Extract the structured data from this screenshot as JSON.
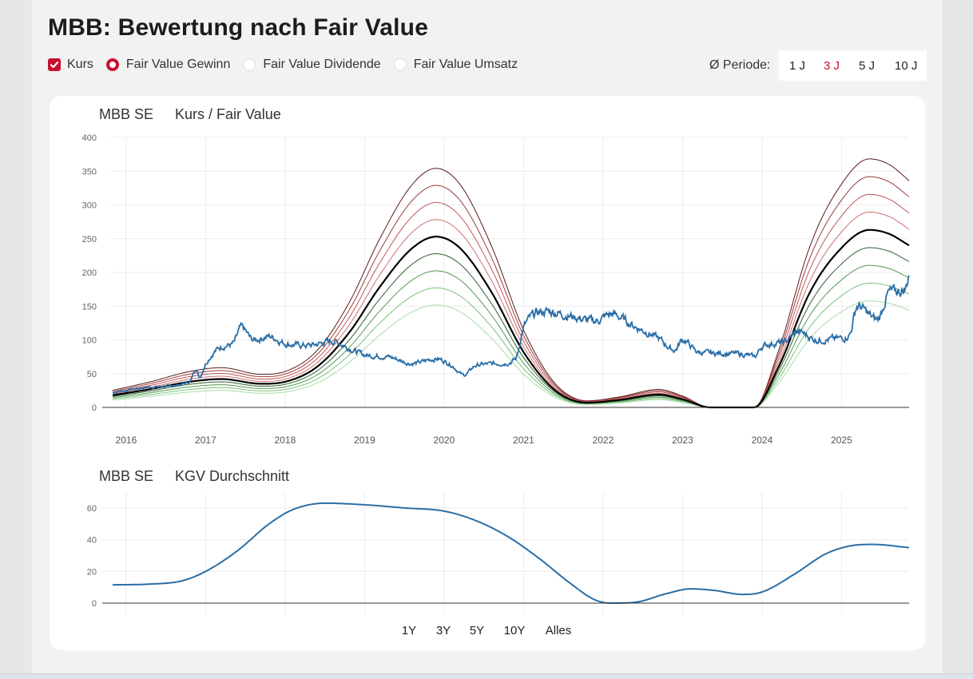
{
  "header": {
    "title": "MBB: Bewertung nach Fair Value",
    "options": [
      {
        "label": "Kurs",
        "type": "checkbox",
        "checked": true
      },
      {
        "label": "Fair Value Gewinn",
        "type": "radio",
        "checked": true
      },
      {
        "label": "Fair Value Dividende",
        "type": "radio",
        "checked": false
      },
      {
        "label": "Fair Value Umsatz",
        "type": "radio",
        "checked": false
      }
    ],
    "periode_label": "Ø Periode:",
    "periode_options": [
      "1 J",
      "3 J",
      "5 J",
      "10 J"
    ],
    "periode_selected": "3 J"
  },
  "colors": {
    "accent": "#c8102e",
    "price_line": "#2a6ea6",
    "fair_value_center": "#000000",
    "upper_bands": [
      "#5a1a1a",
      "#9c3a3a",
      "#bf5656",
      "#cf7070"
    ],
    "lower_bands": [
      "#2e5f2e",
      "#4f9a4f",
      "#7cc07c",
      "#a9dca9"
    ]
  },
  "range_buttons": {
    "options": [
      "1Y",
      "3Y",
      "5Y",
      "10Y",
      "Alles"
    ],
    "selected": "10Y"
  },
  "chart_data": [
    {
      "type": "line",
      "title_left": "MBB SE",
      "title": "Kurs / Fair Value",
      "xlabel": "",
      "ylabel": "",
      "xlim": [
        2015.8,
        2025.85
      ],
      "ylim": [
        0,
        400
      ],
      "yticks": [
        0,
        50,
        100,
        150,
        200,
        250,
        300,
        350,
        400
      ],
      "xticks": [
        2016,
        2017,
        2018,
        2019,
        2020,
        2021,
        2022,
        2023,
        2024,
        2025
      ],
      "grid": true,
      "fair_value": {
        "x": [
          2015.83,
          2016.3,
          2016.8,
          2017.2,
          2017.7,
          2018.0,
          2018.4,
          2018.8,
          2019.2,
          2019.6,
          2019.9,
          2020.2,
          2020.6,
          2021.0,
          2021.4,
          2021.8,
          2022.2,
          2022.7,
          2023.0,
          2023.35,
          2023.6,
          2023.9,
          2024.2,
          2024.6,
          2024.95,
          2025.35,
          2025.6,
          2025.85
        ],
        "center": [
          18,
          27,
          38,
          42,
          35,
          38,
          60,
          110,
          180,
          236,
          253,
          236,
          170,
          82,
          25,
          7,
          11,
          19,
          12,
          0,
          0,
          0,
          58,
          170,
          230,
          263,
          257,
          240
        ],
        "band_step_pct": 10,
        "band_levels": [
          40,
          30,
          20,
          10,
          -10,
          -20,
          -30,
          -40
        ]
      },
      "kurs": {
        "x": [
          2015.83,
          2016.3,
          2016.8,
          2016.88,
          2016.92,
          2017.0,
          2017.2,
          2017.35,
          2017.45,
          2017.6,
          2017.8,
          2018.0,
          2018.3,
          2018.6,
          2018.8,
          2019.0,
          2019.3,
          2019.6,
          2019.9,
          2020.1,
          2020.25,
          2020.4,
          2020.7,
          2020.9,
          2021.0,
          2021.3,
          2021.6,
          2021.9,
          2022.1,
          2022.4,
          2022.7,
          2022.9,
          2023.0,
          2023.2,
          2023.5,
          2023.8,
          2023.9,
          2024.0,
          2024.3,
          2024.45,
          2024.7,
          2024.95,
          2025.1,
          2025.2,
          2025.45,
          2025.6,
          2025.8,
          2025.85
        ],
        "values": [
          22,
          30,
          38,
          58,
          45,
          65,
          90,
          95,
          118,
          100,
          105,
          95,
          92,
          98,
          88,
          78,
          75,
          65,
          72,
          62,
          48,
          62,
          65,
          72,
          118,
          142,
          135,
          128,
          138,
          120,
          102,
          85,
          100,
          82,
          80,
          78,
          75,
          90,
          98,
          112,
          100,
          102,
          108,
          150,
          130,
          170,
          175,
          200
        ]
      }
    },
    {
      "type": "line",
      "title_left": "MBB SE",
      "title": "KGV Durchschnitt",
      "xlabel": "",
      "ylabel": "",
      "xlim": [
        2015.8,
        2025.85
      ],
      "ylim": [
        0,
        70
      ],
      "yticks": [
        0,
        20,
        40,
        60
      ],
      "grid": true,
      "x": [
        2015.83,
        2016.3,
        2016.7,
        2017.0,
        2017.4,
        2017.8,
        2018.1,
        2018.5,
        2019.0,
        2019.5,
        2020.0,
        2020.4,
        2020.8,
        2021.2,
        2021.6,
        2021.9,
        2022.1,
        2022.4,
        2022.8,
        2023.1,
        2023.4,
        2023.75,
        2024.0,
        2024.4,
        2024.8,
        2025.1,
        2025.4,
        2025.85
      ],
      "values": [
        11.5,
        12,
        14,
        20,
        33,
        50,
        59,
        63,
        62,
        60,
        58,
        52,
        42,
        28,
        12,
        2,
        0,
        0.5,
        6,
        9,
        8,
        5.5,
        7,
        18,
        31,
        36,
        37,
        35
      ]
    }
  ]
}
